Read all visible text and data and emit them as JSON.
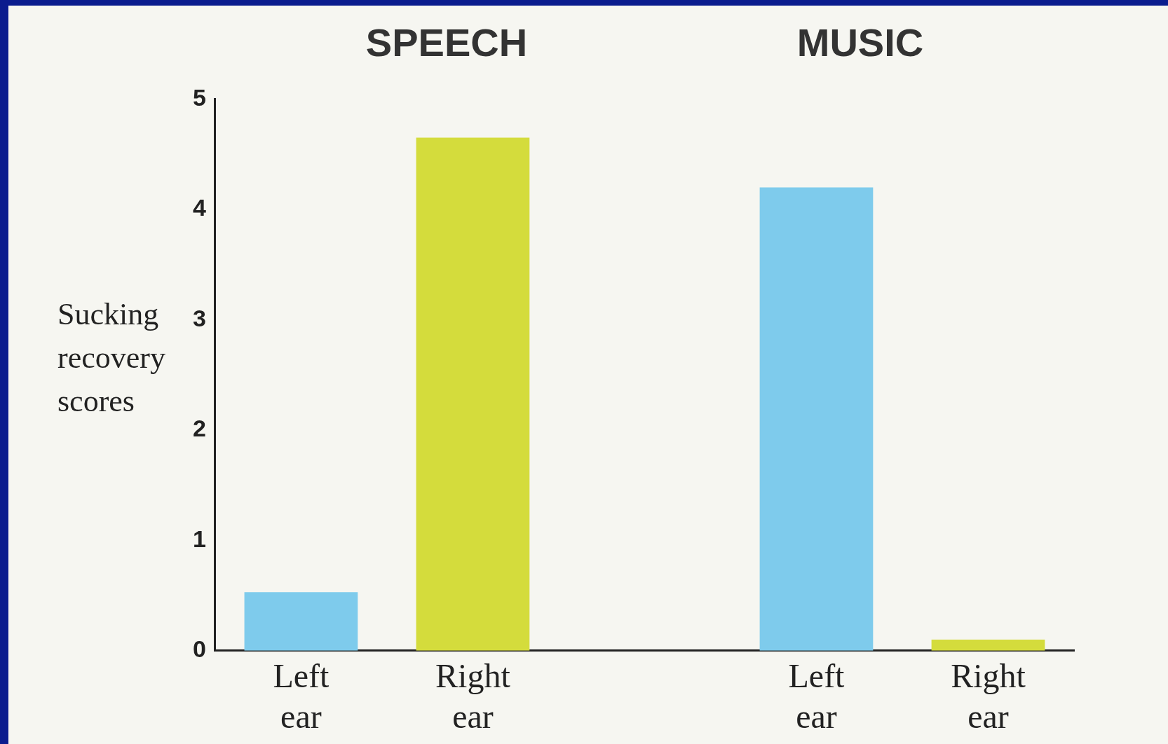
{
  "chart_data": {
    "type": "bar",
    "ylabel": "Sucking recovery scores",
    "annotations": [
      "SPEECH",
      "MUSIC"
    ],
    "categories": [
      "Left ear",
      "Right ear",
      null,
      "Left ear",
      "Right ear"
    ],
    "values": [
      0.53,
      4.65,
      null,
      4.2,
      0.1
    ],
    "colors": [
      "#7ecbec",
      "#d4dc3c",
      "#7ecbec",
      "#7ecbec",
      "#d4dc3c"
    ],
    "ylim": [
      0,
      5
    ],
    "yticks": [
      0,
      1,
      2,
      3,
      4,
      5
    ],
    "grid": false,
    "legend": false
  }
}
